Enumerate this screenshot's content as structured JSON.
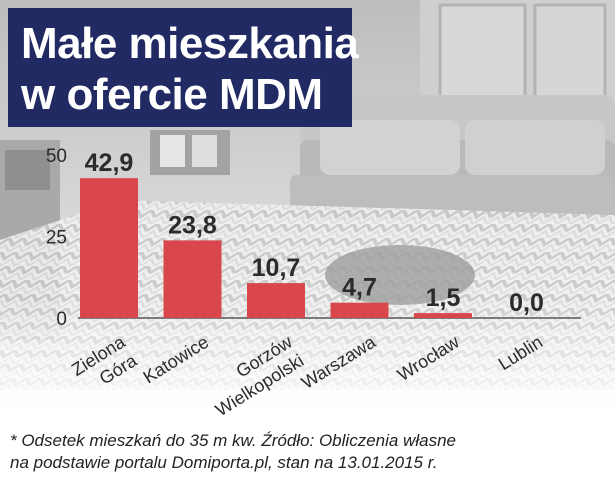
{
  "title_lines": [
    "Małe mieszkania",
    "w ofercie MDM"
  ],
  "chart_data": {
    "type": "bar",
    "title": "Małe mieszkania w ofercie MDM",
    "categories": [
      [
        "Zielona",
        "Góra"
      ],
      [
        "Katowice"
      ],
      [
        "Gorzów",
        "Wielkopolski"
      ],
      [
        "Warszawa"
      ],
      [
        "Wrocław"
      ],
      [
        "Lublin"
      ]
    ],
    "values": [
      42.9,
      23.8,
      10.7,
      4.7,
      1.5,
      0.0
    ],
    "value_labels": [
      "42,9",
      "23,8",
      "10,7",
      "4,7",
      "1,5",
      "0,0"
    ],
    "yticks": [
      0,
      25,
      50
    ],
    "ylim": [
      0,
      50
    ],
    "grid": false,
    "legend": "none",
    "bar_color": "#d9464b"
  },
  "footnote_lines": [
    "* Odsetek mieszkań do 35 m kw. Źródło: Obliczenia własne",
    "na podstawie portalu Domiporta.pl, stan na 13.01.2015 r."
  ]
}
